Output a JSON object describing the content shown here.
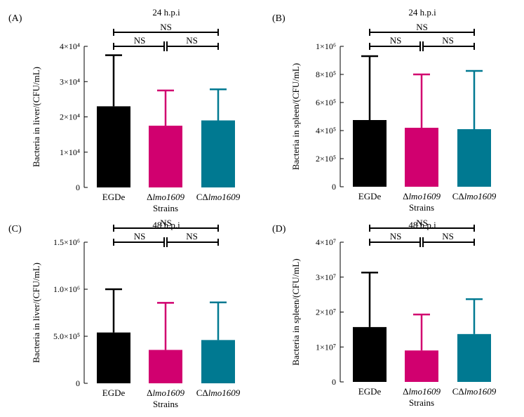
{
  "chart_data": [
    {
      "type": "bar",
      "panel": "(A)",
      "title": "24 h.p.i",
      "ylabel": "Bacteria in liver/(CFU/mL)",
      "xlabel": "Strains",
      "categories": [
        "EGDe",
        "Δlmo1609",
        "CΔlmo1609"
      ],
      "values": [
        23000,
        17500,
        19000
      ],
      "errors": [
        14500,
        10000,
        8800
      ],
      "ylim": [
        0,
        40000
      ],
      "yticks": [
        0,
        10000,
        20000,
        30000,
        40000
      ],
      "ytick_labels": [
        "0",
        "1×10⁴",
        "2×10⁴",
        "3×10⁴",
        "4×10⁴"
      ],
      "significance": [
        "NS",
        "NS",
        "NS"
      ]
    },
    {
      "type": "bar",
      "panel": "(B)",
      "title": "24 h.p.i",
      "ylabel": "Bacteria in spleen/(CFU/mL)",
      "xlabel": "Strains",
      "categories": [
        "EGDe",
        "Δlmo1609",
        "CΔlmo1609"
      ],
      "values": [
        475000,
        420000,
        410000
      ],
      "errors": [
        455000,
        380000,
        415000
      ],
      "ylim": [
        0,
        1000000
      ],
      "yticks": [
        0,
        200000,
        400000,
        600000,
        800000,
        1000000
      ],
      "ytick_labels": [
        "0",
        "2×10⁵",
        "4×10⁵",
        "6×10⁵",
        "8×10⁵",
        "1×10⁶"
      ],
      "significance": [
        "NS",
        "NS",
        "NS"
      ]
    },
    {
      "type": "bar",
      "panel": "(C)",
      "title": "48 h.p.i",
      "ylabel": "Bacteria in liver/(CFU/mL)",
      "xlabel": "Strains",
      "categories": [
        "EGDe",
        "Δlmo1609",
        "CΔlmo1609"
      ],
      "values": [
        540000,
        355000,
        460000
      ],
      "errors": [
        460000,
        500000,
        400000
      ],
      "ylim": [
        0,
        1500000
      ],
      "yticks": [
        0,
        500000,
        1000000,
        1500000
      ],
      "ytick_labels": [
        "0",
        "5.0×10⁵",
        "1.0×10⁶",
        "1.5×10⁶"
      ],
      "significance": [
        "NS",
        "NS",
        "NS"
      ]
    },
    {
      "type": "bar",
      "panel": "(D)",
      "title": "48 h.p.i",
      "ylabel": "Bacteria in spleen/(CFU/mL)",
      "xlabel": "Strains",
      "categories": [
        "EGDe",
        "Δlmo1609",
        "CΔlmo1609"
      ],
      "values": [
        15700000,
        9000000,
        13700000
      ],
      "errors": [
        15600000,
        10300000,
        10000000
      ],
      "ylim": [
        0,
        40000000
      ],
      "yticks": [
        0,
        10000000,
        20000000,
        30000000,
        40000000
      ],
      "ytick_labels": [
        "0",
        "1×10⁷",
        "2×10⁷",
        "3×10⁷",
        "4×10⁷"
      ],
      "significance": [
        "NS",
        "NS",
        "NS"
      ]
    }
  ],
  "colors": {
    "EGDe": "#000000",
    "mutant": "#d1006f",
    "complement": "#007991"
  }
}
